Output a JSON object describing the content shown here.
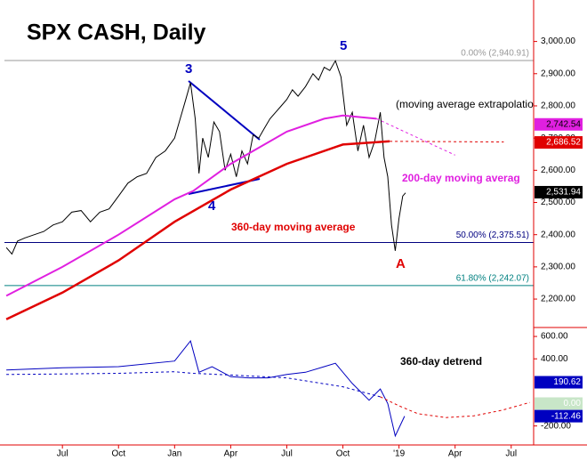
{
  "chart_data": [
    {
      "type": "line",
      "title": "SPX CASH, Daily",
      "xlim": [
        2.9,
        31.2
      ],
      "ylim": [
        2120,
        3115
      ],
      "yticks": [
        {
          "value": 2200,
          "label": "2,200.00"
        },
        {
          "value": 2300,
          "label": "2,300.00"
        },
        {
          "value": 2400,
          "label": "2,400.00"
        },
        {
          "value": 2500,
          "label": "2,500.00"
        },
        {
          "value": 2600,
          "label": "2,600.00"
        },
        {
          "value": 2700,
          "label": "2,700.00"
        },
        {
          "value": 2800,
          "label": "2,800.00"
        },
        {
          "value": 2900,
          "label": "2,900.00"
        },
        {
          "value": 3000,
          "label": "3,000.00"
        }
      ],
      "series": [
        {
          "color": "#000000",
          "width": 1,
          "dashed": false,
          "x": [
            3.0,
            3.3,
            3.6,
            4,
            4.5,
            5,
            5.5,
            6,
            6.5,
            7,
            7.5,
            8,
            8.5,
            9,
            9.5,
            10,
            10.5,
            11,
            11.5,
            12,
            12.3,
            12.6,
            12.85,
            13.1,
            13.3,
            13.5,
            13.8,
            14.1,
            14.4,
            14.7,
            15,
            15.3,
            15.6,
            15.9,
            16.2,
            16.5,
            16.8,
            17.1,
            17.4,
            17.7,
            18,
            18.3,
            18.6,
            19,
            19.4,
            19.7,
            20,
            20.3,
            20.6,
            20.9,
            21.2,
            21.5,
            21.8,
            22.1,
            22.4,
            22.7,
            23,
            23.2,
            23.4,
            23.6,
            23.8,
            24.0,
            24.2,
            24.35
          ],
          "values": [
            2360,
            2340,
            2380,
            2390,
            2400,
            2410,
            2430,
            2440,
            2470,
            2475,
            2440,
            2470,
            2480,
            2520,
            2560,
            2580,
            2590,
            2640,
            2660,
            2700,
            2760,
            2820,
            2872,
            2760,
            2590,
            2700,
            2640,
            2750,
            2720,
            2600,
            2650,
            2580,
            2660,
            2620,
            2710,
            2700,
            2730,
            2760,
            2780,
            2800,
            2820,
            2850,
            2830,
            2860,
            2900,
            2880,
            2920,
            2910,
            2940,
            2890,
            2740,
            2780,
            2660,
            2740,
            2640,
            2690,
            2780,
            2640,
            2580,
            2430,
            2350,
            2450,
            2520,
            2530
          ]
        },
        {
          "color": "#e00000",
          "width": 2.5,
          "dashed": false,
          "x": [
            3,
            6,
            9,
            12,
            15,
            18,
            21,
            23.5
          ],
          "values": [
            2137,
            2220,
            2320,
            2440,
            2540,
            2620,
            2680,
            2690
          ]
        },
        {
          "color": "#e00000",
          "width": 1,
          "dashed": true,
          "x": [
            23.5,
            26,
            29.6
          ],
          "values": [
            2690,
            2689,
            2688
          ]
        },
        {
          "color": "#e020e0",
          "width": 2,
          "dashed": false,
          "x": [
            3,
            6,
            9,
            12,
            13,
            15,
            18,
            20,
            21,
            22.8
          ],
          "values": [
            2210,
            2300,
            2400,
            2510,
            2536,
            2620,
            2720,
            2760,
            2770,
            2760
          ]
        },
        {
          "color": "#e020e0",
          "width": 1,
          "dashed": true,
          "x": [
            22.8,
            27
          ],
          "values": [
            2760,
            2647
          ]
        }
      ],
      "levels": [
        {
          "value": 2940.91,
          "label": "0.00% (2,940.91)",
          "color": "#999999"
        },
        {
          "value": 2375.51,
          "label": "50.00% (2,375.51)",
          "color": "#000080"
        },
        {
          "value": 2242.07,
          "label": "61.80% (2,242.07)",
          "color": "#008080"
        }
      ],
      "markers": [
        {
          "value": 2742.54,
          "label": "2,742.54",
          "color": "#e020e0",
          "text_color": "#000000"
        },
        {
          "value": 2686.52,
          "label": "2,686.52",
          "color": "#e00000",
          "text_color": "#ffffff"
        },
        {
          "value": 2531.94,
          "label": "2,531.94",
          "color": "#000000",
          "text_color": "#ffffff"
        }
      ],
      "annotations": [
        "3",
        "4",
        "5",
        "A",
        "(moving average extrapolation",
        "200-day moving averag",
        "360-day moving average"
      ]
    },
    {
      "type": "line",
      "xlim": [
        2.9,
        31.2
      ],
      "ylim": [
        -370,
        680
      ],
      "xticks": [
        {
          "value": 6,
          "label": "Jul"
        },
        {
          "value": 9,
          "label": "Oct"
        },
        {
          "value": 12,
          "label": "Jan"
        },
        {
          "value": 15,
          "label": "Apr"
        },
        {
          "value": 18,
          "label": "Jul"
        },
        {
          "value": 21,
          "label": "Oct"
        },
        {
          "value": 24,
          "label": "'19"
        },
        {
          "value": 27,
          "label": "Apr"
        },
        {
          "value": 30,
          "label": "Jul"
        }
      ],
      "yticks": [
        {
          "value": 600,
          "label": "600.00"
        },
        {
          "value": 400,
          "label": "400.00"
        },
        {
          "value": -200,
          "label": "-200.00"
        }
      ],
      "series": [
        {
          "color": "#0000c0",
          "width": 1,
          "dashed": false,
          "x": [
            3,
            6,
            9,
            12,
            12.85,
            13.3,
            14,
            15,
            16,
            17,
            18,
            19,
            20,
            20.6,
            21.5,
            22.4,
            23,
            23.4,
            23.8,
            24.3
          ],
          "values": [
            300,
            320,
            330,
            380,
            560,
            280,
            330,
            240,
            230,
            230,
            260,
            280,
            330,
            360,
            180,
            30,
            130,
            0,
            -290,
            -112
          ]
        },
        {
          "color": "#0000c0",
          "width": 1,
          "dashed": true,
          "x": [
            3,
            6,
            9,
            12,
            13,
            15,
            18,
            21,
            23
          ],
          "values": [
            260,
            265,
            270,
            285,
            270,
            255,
            230,
            150,
            60
          ]
        },
        {
          "color": "#e00000",
          "width": 1,
          "dashed": true,
          "x": [
            23,
            24,
            25,
            26.5,
            28,
            29.5,
            31
          ],
          "values": [
            60,
            -20,
            -90,
            -125,
            -110,
            -60,
            10
          ]
        }
      ],
      "markers": [
        {
          "value": 190.62,
          "label": "190.62",
          "color": "#0000c0",
          "text_color": "#ffffff"
        },
        {
          "value": 0,
          "label": "0.00",
          "color": "#c8e6c8",
          "text_color": "#ffffff"
        },
        {
          "value": -112.46,
          "label": "-112.46",
          "color": "#0000c0",
          "text_color": "#ffffff"
        }
      ],
      "annotations": [
        "360-day detrend"
      ]
    }
  ]
}
